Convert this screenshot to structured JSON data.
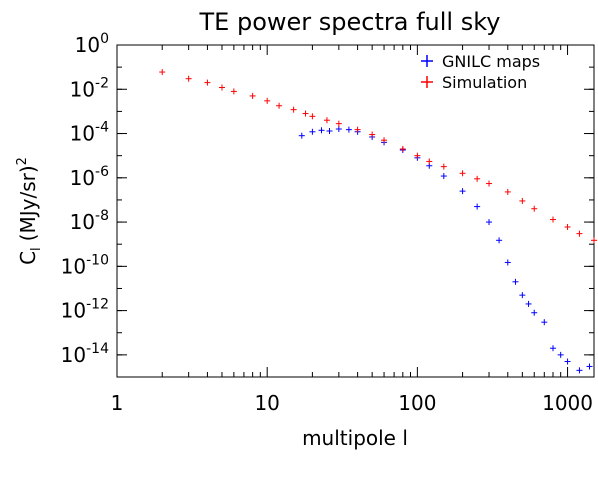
{
  "chart_data": {
    "type": "scatter",
    "title": "TE power spectra full sky",
    "xlabel": "multipole l",
    "ylabel_main": "C",
    "ylabel_sub": "l",
    "ylabel_units": "(MJy/sr)",
    "ylabel_sup": "2",
    "xscale": "log",
    "yscale": "log",
    "xlim": [
      1,
      1500
    ],
    "ylim": [
      1e-15,
      1
    ],
    "grid": false,
    "legend_position": "top-right",
    "x_ticks": [
      {
        "value": 1,
        "label": "1"
      },
      {
        "value": 10,
        "label": "10"
      },
      {
        "value": 100,
        "label": "100"
      },
      {
        "value": 1000,
        "label": "1000"
      }
    ],
    "y_ticks": [
      {
        "value": 1,
        "base": "10",
        "exp": "0"
      },
      {
        "value": 0.01,
        "base": "10",
        "exp": "-2"
      },
      {
        "value": 0.0001,
        "base": "10",
        "exp": "-4"
      },
      {
        "value": 1e-06,
        "base": "10",
        "exp": "-6"
      },
      {
        "value": 1e-08,
        "base": "10",
        "exp": "-8"
      },
      {
        "value": 1e-10,
        "base": "10",
        "exp": "-10"
      },
      {
        "value": 1e-12,
        "base": "10",
        "exp": "-12"
      },
      {
        "value": 1e-14,
        "base": "10",
        "exp": "-14"
      }
    ],
    "series": [
      {
        "name": "GNILC maps",
        "color": "#0000ff",
        "marker": "plus",
        "x": [
          17,
          20,
          23,
          26,
          30,
          35,
          40,
          50,
          60,
          80,
          100,
          120,
          150,
          200,
          250,
          300,
          350,
          400,
          450,
          500,
          550,
          600,
          700,
          800,
          900,
          1000,
          1200,
          1400
        ],
        "y": [
          8e-05,
          0.00012,
          0.00014,
          0.00013,
          0.00016,
          0.00015,
          0.00012,
          7e-05,
          4e-05,
          1.8e-05,
          8e-06,
          3.5e-06,
          1.2e-06,
          2.5e-07,
          5e-08,
          1e-08,
          1.5e-09,
          1.5e-10,
          2e-11,
          5e-12,
          2e-12,
          8e-13,
          3e-13,
          2e-14,
          1e-14,
          5e-15,
          2e-15,
          3e-15
        ]
      },
      {
        "name": "Simulation",
        "color": "#ff0000",
        "marker": "plus",
        "x": [
          2,
          3,
          4,
          5,
          6,
          8,
          10,
          12,
          15,
          18,
          20,
          25,
          30,
          40,
          50,
          60,
          80,
          100,
          120,
          150,
          200,
          250,
          300,
          400,
          500,
          600,
          800,
          1000,
          1200,
          1500
        ],
        "y": [
          0.06,
          0.03,
          0.02,
          0.012,
          0.008,
          0.005,
          0.003,
          0.0018,
          0.0012,
          0.0008,
          0.0006,
          0.0004,
          0.00028,
          0.00015,
          9e-05,
          5e-05,
          2e-05,
          1e-05,
          5.5e-06,
          3.2e-06,
          1.6e-06,
          9e-07,
          5.5e-07,
          2.3e-07,
          9e-08,
          4e-08,
          1.3e-08,
          6e-09,
          3e-09,
          1.5e-09
        ]
      }
    ]
  }
}
